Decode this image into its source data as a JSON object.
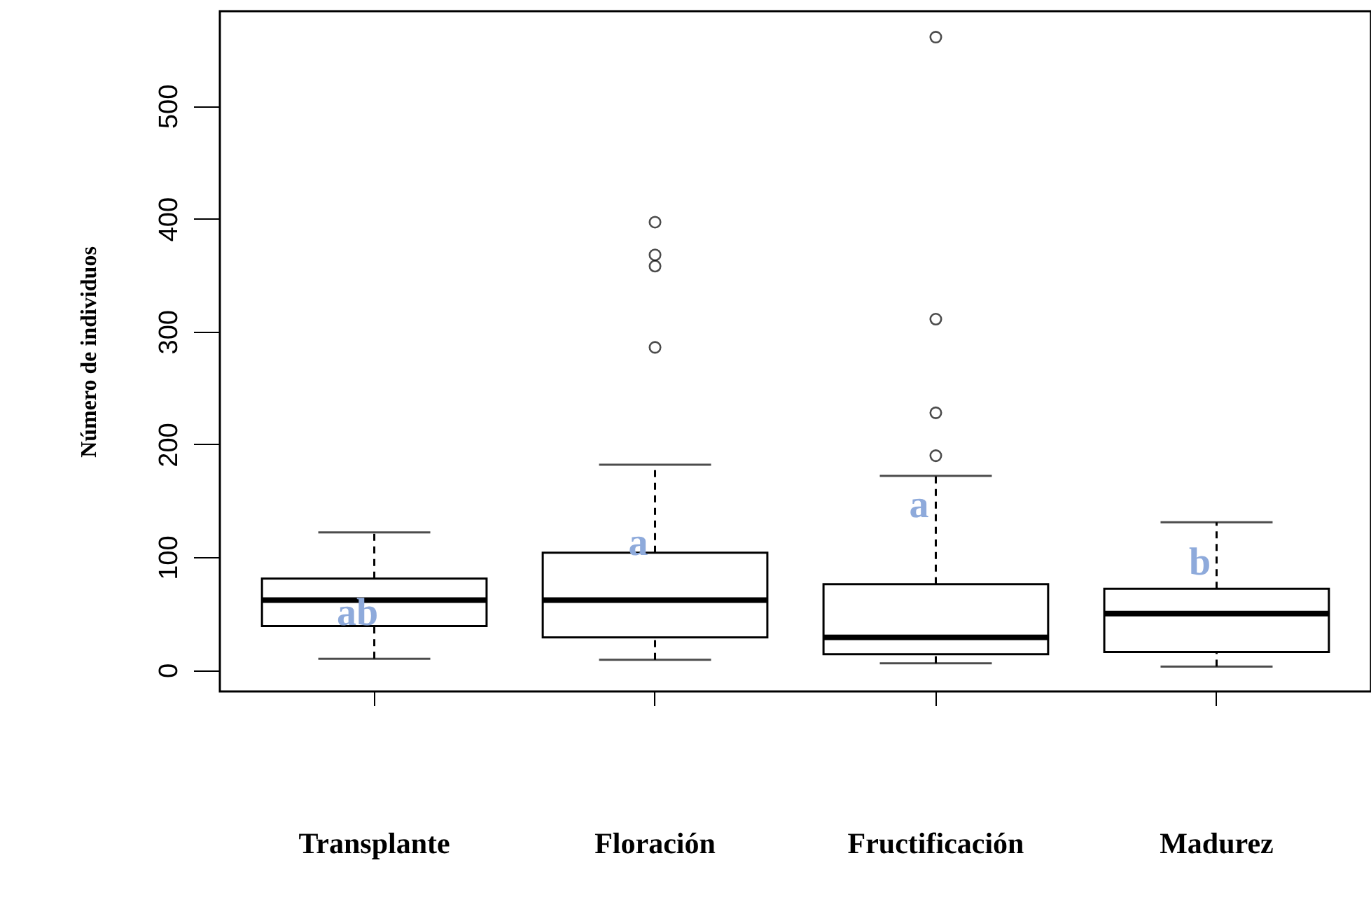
{
  "chart_data": {
    "type": "box",
    "ylabel": "Número de individuos",
    "categories": [
      "Transplante",
      "Floración",
      "Fructificación",
      "Madurez"
    ],
    "boxes": [
      {
        "low": 10,
        "q1": 39,
        "median": 62,
        "q3": 81,
        "high": 122
      },
      {
        "low": 9,
        "q1": 29,
        "median": 62,
        "q3": 104,
        "high": 182,
        "outliers": [
          286,
          358,
          368,
          397
        ]
      },
      {
        "low": 6,
        "q1": 14,
        "median": 29,
        "q3": 76,
        "high": 172,
        "outliers": [
          190,
          228,
          311,
          561
        ]
      },
      {
        "low": 3,
        "q1": 16,
        "median": 50,
        "q3": 72,
        "high": 131
      }
    ],
    "ylim": [
      -19,
      584
    ],
    "yticks": [
      0,
      100,
      200,
      300,
      400,
      500
    ],
    "annotations": [
      "ab",
      "a",
      "a",
      "b"
    ]
  }
}
